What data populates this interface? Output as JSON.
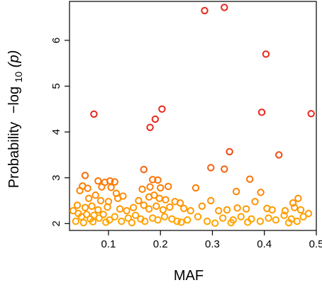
{
  "chart_data": {
    "type": "scatter",
    "title": "",
    "xlabel": "MAF",
    "ylabel_main": "Probability",
    "ylabel_minus_log": "−log",
    "ylabel_sub": "10",
    "ylabel_arg": "(p)",
    "xlim": [
      0.025,
      0.5
    ],
    "ylim": [
      1.85,
      6.85
    ],
    "x_ticks": [
      0.1,
      0.2,
      0.3,
      0.4,
      0.5
    ],
    "x_tick_labels": [
      "0.1",
      "0.2",
      "0.3",
      "0.4",
      "0.5"
    ],
    "y_ticks": [
      2,
      3,
      4,
      5,
      6
    ],
    "y_tick_labels": [
      "2",
      "3",
      "4",
      "5",
      "6"
    ],
    "grid": false,
    "color_scale": {
      "low": "#FFA500",
      "mid": "#FF8C00",
      "high": "#E8281C"
    },
    "points": [
      [
        0.285,
        6.65
      ],
      [
        0.323,
        6.72
      ],
      [
        0.403,
        5.7
      ],
      [
        0.072,
        4.39
      ],
      [
        0.18,
        4.1
      ],
      [
        0.19,
        4.28
      ],
      [
        0.203,
        4.5
      ],
      [
        0.395,
        4.43
      ],
      [
        0.49,
        4.4
      ],
      [
        0.333,
        3.57
      ],
      [
        0.428,
        3.5
      ],
      [
        0.055,
        3.05
      ],
      [
        0.168,
        3.18
      ],
      [
        0.297,
        3.22
      ],
      [
        0.323,
        3.19
      ],
      [
        0.372,
        2.97
      ],
      [
        0.08,
        2.93
      ],
      [
        0.093,
        2.9
      ],
      [
        0.103,
        2.93
      ],
      [
        0.112,
        2.91
      ],
      [
        0.185,
        2.96
      ],
      [
        0.195,
        2.95
      ],
      [
        0.05,
        2.82
      ],
      [
        0.06,
        2.77
      ],
      [
        0.087,
        2.8
      ],
      [
        0.105,
        2.79
      ],
      [
        0.115,
        2.66
      ],
      [
        0.165,
        2.75
      ],
      [
        0.18,
        2.8
      ],
      [
        0.2,
        2.78
      ],
      [
        0.215,
        2.81
      ],
      [
        0.268,
        2.78
      ],
      [
        0.346,
        2.7
      ],
      [
        0.393,
        2.68
      ],
      [
        0.045,
        2.72
      ],
      [
        0.062,
        2.55
      ],
      [
        0.075,
        2.62
      ],
      [
        0.085,
        2.5
      ],
      [
        0.1,
        2.48
      ],
      [
        0.118,
        2.55
      ],
      [
        0.128,
        2.6
      ],
      [
        0.158,
        2.5
      ],
      [
        0.178,
        2.58
      ],
      [
        0.188,
        2.62
      ],
      [
        0.198,
        2.55
      ],
      [
        0.21,
        2.52
      ],
      [
        0.228,
        2.48
      ],
      [
        0.238,
        2.45
      ],
      [
        0.297,
        2.5
      ],
      [
        0.382,
        2.48
      ],
      [
        0.465,
        2.55
      ],
      [
        0.455,
        2.45
      ],
      [
        0.04,
        2.4
      ],
      [
        0.055,
        2.35
      ],
      [
        0.068,
        2.38
      ],
      [
        0.08,
        2.3
      ],
      [
        0.098,
        2.36
      ],
      [
        0.122,
        2.32
      ],
      [
        0.135,
        2.28
      ],
      [
        0.148,
        2.35
      ],
      [
        0.168,
        2.4
      ],
      [
        0.178,
        2.32
      ],
      [
        0.192,
        2.38
      ],
      [
        0.205,
        2.3
      ],
      [
        0.218,
        2.36
      ],
      [
        0.245,
        2.33
      ],
      [
        0.258,
        2.28
      ],
      [
        0.28,
        2.38
      ],
      [
        0.312,
        2.28
      ],
      [
        0.328,
        2.3
      ],
      [
        0.348,
        2.34
      ],
      [
        0.365,
        2.32
      ],
      [
        0.405,
        2.33
      ],
      [
        0.415,
        2.3
      ],
      [
        0.44,
        2.28
      ],
      [
        0.458,
        2.35
      ],
      [
        0.47,
        2.3
      ],
      [
        0.485,
        2.22
      ],
      [
        0.032,
        2.28
      ],
      [
        0.042,
        2.22
      ],
      [
        0.048,
        2.15
      ],
      [
        0.058,
        2.2
      ],
      [
        0.065,
        2.1
      ],
      [
        0.072,
        2.18
      ],
      [
        0.082,
        2.12
      ],
      [
        0.09,
        2.2
      ],
      [
        0.102,
        2.08
      ],
      [
        0.112,
        2.15
      ],
      [
        0.125,
        2.05
      ],
      [
        0.138,
        2.12
      ],
      [
        0.152,
        2.18
      ],
      [
        0.162,
        2.1
      ],
      [
        0.17,
        2.05
      ],
      [
        0.185,
        2.12
      ],
      [
        0.195,
        2.08
      ],
      [
        0.208,
        2.15
      ],
      [
        0.222,
        2.1
      ],
      [
        0.232,
        2.05
      ],
      [
        0.252,
        2.08
      ],
      [
        0.272,
        2.15
      ],
      [
        0.29,
        2.05
      ],
      [
        0.305,
        2.01
      ],
      [
        0.32,
        2.12
      ],
      [
        0.34,
        2.08
      ],
      [
        0.355,
        2.15
      ],
      [
        0.375,
        2.1
      ],
      [
        0.392,
        2.05
      ],
      [
        0.408,
        2.12
      ],
      [
        0.422,
        2.08
      ],
      [
        0.438,
        2.18
      ],
      [
        0.452,
        2.1
      ],
      [
        0.463,
        2.05
      ],
      [
        0.475,
        2.15
      ],
      [
        0.447,
        2.02
      ],
      [
        0.037,
        2.05
      ],
      [
        0.052,
        2.02
      ],
      [
        0.07,
        2.04
      ],
      [
        0.095,
        2.03
      ],
      [
        0.145,
        2.02
      ],
      [
        0.24,
        2.03
      ],
      [
        0.336,
        2.02
      ],
      [
        0.368,
        2.03
      ]
    ]
  }
}
